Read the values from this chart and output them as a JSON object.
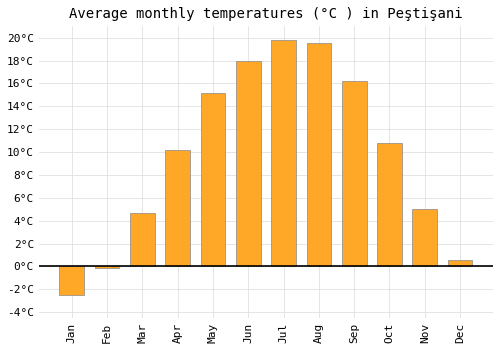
{
  "title": "Average monthly temperatures (°C ) in Peştişani",
  "month_labels": [
    "Jan",
    "Feb",
    "Mar",
    "Apr",
    "May",
    "Jun",
    "Jul",
    "Aug",
    "Sep",
    "Oct",
    "Nov",
    "Dec"
  ],
  "values": [
    -2.5,
    -0.1,
    4.7,
    10.2,
    15.2,
    18.0,
    19.8,
    19.5,
    16.2,
    10.8,
    5.0,
    0.6
  ],
  "bar_color": "#FFA726",
  "bar_color_neg": "#FFA726",
  "ylim": [
    -4.5,
    21
  ],
  "yticks": [
    -4,
    -2,
    0,
    2,
    4,
    6,
    8,
    10,
    12,
    14,
    16,
    18,
    20
  ],
  "background_color": "#ffffff",
  "grid_color": "#e0e0e0",
  "title_fontsize": 10,
  "tick_fontsize": 8
}
